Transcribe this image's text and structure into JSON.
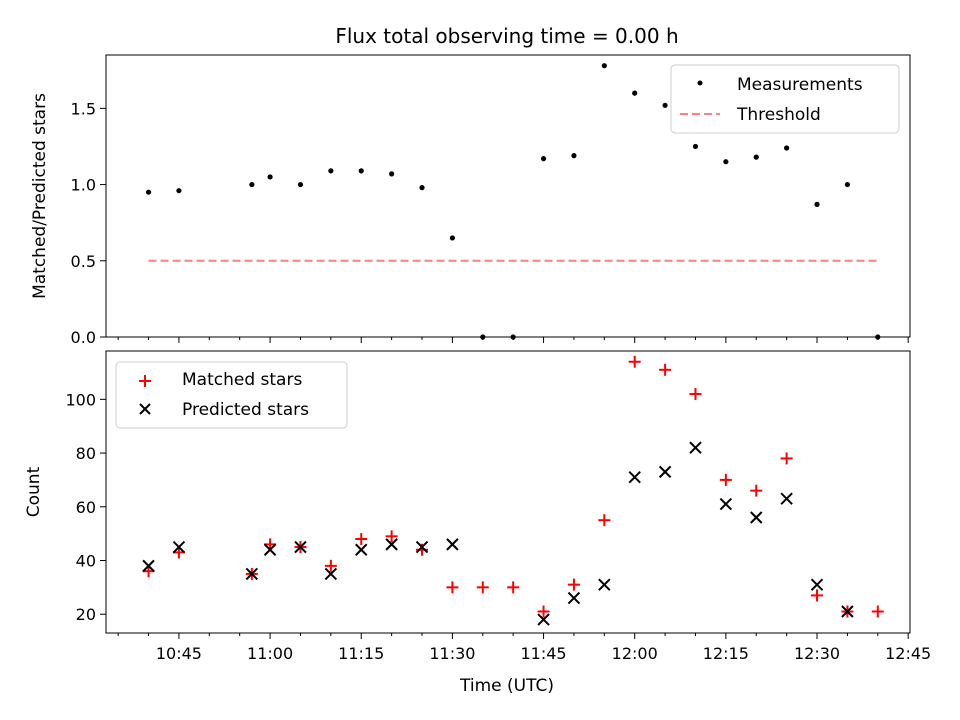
{
  "chart_data": [
    {
      "type": "scatter",
      "title": "Flux total observing time = 0.00 h",
      "xlabel": "",
      "ylabel": "Matched/Predicted stars",
      "ylim": [
        0,
        1.85
      ],
      "yticks": [
        0.0,
        0.5,
        1.0,
        1.5
      ],
      "ytick_labels": [
        "0.0",
        "0.5",
        "1.0",
        "1.5"
      ],
      "legend_position": "top-right",
      "series": [
        {
          "name": "Measurements",
          "kind": "scatter",
          "color": "#000000",
          "x": [
            "10:40",
            "10:45",
            "10:57",
            "11:00",
            "11:05",
            "11:10",
            "11:15",
            "11:20",
            "11:25",
            "11:30",
            "11:35",
            "11:40",
            "11:45",
            "11:50",
            "11:55",
            "12:00",
            "12:05",
            "12:10",
            "12:15",
            "12:20",
            "12:25",
            "12:30",
            "12:35",
            "12:40"
          ],
          "y": [
            0.95,
            0.96,
            1.0,
            1.05,
            1.0,
            1.09,
            1.09,
            1.07,
            0.98,
            0.65,
            0.0,
            0.0,
            1.17,
            1.19,
            1.78,
            1.6,
            1.52,
            1.25,
            1.15,
            1.18,
            1.24,
            0.87,
            1.0,
            0.0
          ]
        },
        {
          "name": "Threshold",
          "kind": "line",
          "color": "#ff7f7f",
          "x": [
            "10:40",
            "12:40"
          ],
          "y": [
            0.5,
            0.5
          ]
        }
      ]
    },
    {
      "type": "scatter",
      "title": "",
      "xlabel": "Time (UTC)",
      "ylabel": "Count",
      "ylim": [
        13,
        118
      ],
      "yticks": [
        20,
        40,
        60,
        80,
        100
      ],
      "ytick_labels": [
        "20",
        "40",
        "60",
        "80",
        "100"
      ],
      "xticks": [
        "10:45",
        "11:00",
        "11:15",
        "11:30",
        "11:45",
        "12:00",
        "12:15",
        "12:30",
        "12:45"
      ],
      "legend_position": "top-left",
      "series": [
        {
          "name": "Matched stars",
          "marker": "plus",
          "color": "#ff0000",
          "x": [
            "10:40",
            "10:45",
            "10:57",
            "11:00",
            "11:05",
            "11:10",
            "11:15",
            "11:20",
            "11:25",
            "11:30",
            "11:35",
            "11:40",
            "11:45",
            "11:50",
            "11:55",
            "12:00",
            "12:05",
            "12:10",
            "12:15",
            "12:20",
            "12:25",
            "12:30",
            "12:35",
            "12:40"
          ],
          "y": [
            36,
            43,
            35,
            46,
            45,
            38,
            48,
            49,
            44,
            30,
            30,
            30,
            21,
            31,
            55,
            114,
            111,
            102,
            70,
            66,
            78,
            27,
            21,
            21
          ]
        },
        {
          "name": "Predicted stars",
          "marker": "x",
          "color": "#000000",
          "x": [
            "10:40",
            "10:45",
            "10:57",
            "11:00",
            "11:05",
            "11:10",
            "11:15",
            "11:20",
            "11:25",
            "11:30",
            "11:45",
            "11:50",
            "11:55",
            "12:00",
            "12:05",
            "12:10",
            "12:15",
            "12:20",
            "12:25",
            "12:30",
            "12:35"
          ],
          "y": [
            38,
            45,
            35,
            44,
            45,
            35,
            44,
            46,
            45,
            46,
            18,
            26,
            31,
            71,
            73,
            82,
            61,
            56,
            63,
            31,
            21
          ]
        }
      ]
    }
  ]
}
